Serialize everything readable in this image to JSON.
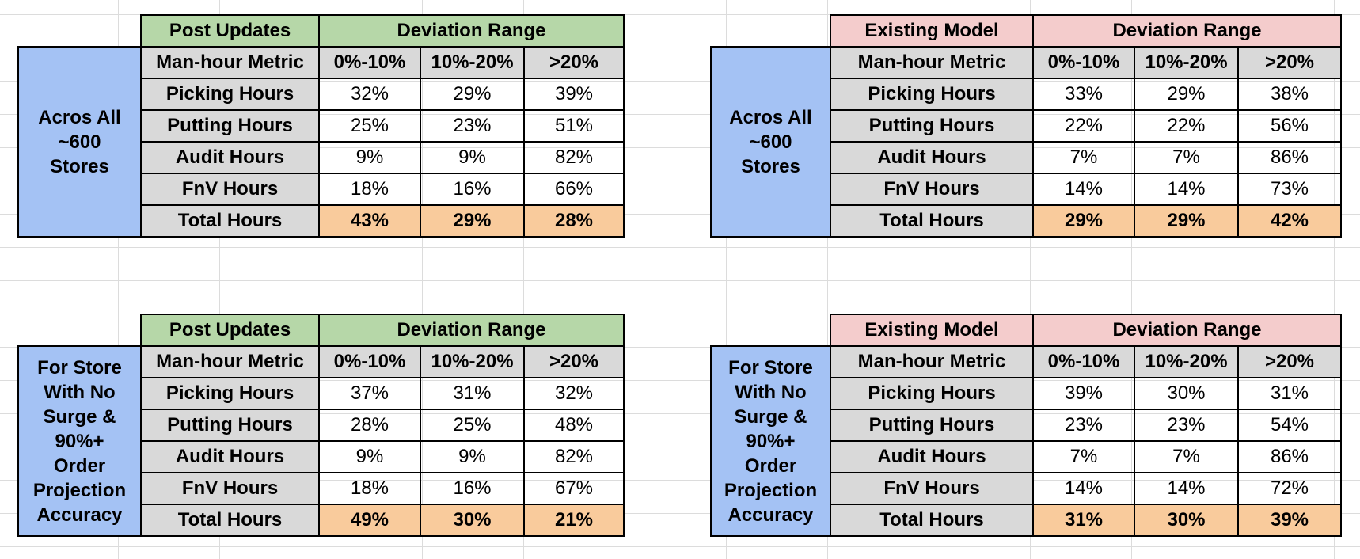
{
  "tables": [
    {
      "corner_label": "Post Updates",
      "range_label": "Deviation Range",
      "side_lines": [
        "Acros All",
        "~600",
        "Stores"
      ],
      "column_headers": [
        "Man-hour Metric",
        "0%-10%",
        "10%-20%",
        ">20%"
      ],
      "rows": [
        {
          "metric": "Picking Hours",
          "values": [
            "32%",
            "29%",
            "39%"
          ]
        },
        {
          "metric": "Putting Hours",
          "values": [
            "25%",
            "23%",
            "51%"
          ]
        },
        {
          "metric": "Audit Hours",
          "values": [
            "9%",
            "9%",
            "82%"
          ]
        },
        {
          "metric": "FnV Hours",
          "values": [
            "18%",
            "16%",
            "66%"
          ]
        },
        {
          "metric": "Total Hours",
          "values": [
            "43%",
            "29%",
            "28%"
          ]
        }
      ]
    },
    {
      "corner_label": "Existing Model",
      "range_label": "Deviation Range",
      "side_lines": [
        "Acros All",
        "~600",
        "Stores"
      ],
      "column_headers": [
        "Man-hour Metric",
        "0%-10%",
        "10%-20%",
        ">20%"
      ],
      "rows": [
        {
          "metric": "Picking Hours",
          "values": [
            "33%",
            "29%",
            "38%"
          ]
        },
        {
          "metric": "Putting Hours",
          "values": [
            "22%",
            "22%",
            "56%"
          ]
        },
        {
          "metric": "Audit Hours",
          "values": [
            "7%",
            "7%",
            "86%"
          ]
        },
        {
          "metric": "FnV Hours",
          "values": [
            "14%",
            "14%",
            "73%"
          ]
        },
        {
          "metric": "Total Hours",
          "values": [
            "29%",
            "29%",
            "42%"
          ]
        }
      ]
    },
    {
      "corner_label": "Post Updates",
      "range_label": "Deviation Range",
      "side_lines": [
        "For Store",
        "With No",
        "Surge &",
        "90%+",
        "Order",
        "Projection",
        "Accuracy"
      ],
      "column_headers": [
        "Man-hour Metric",
        "0%-10%",
        "10%-20%",
        ">20%"
      ],
      "rows": [
        {
          "metric": "Picking Hours",
          "values": [
            "37%",
            "31%",
            "32%"
          ]
        },
        {
          "metric": "Putting Hours",
          "values": [
            "28%",
            "25%",
            "48%"
          ]
        },
        {
          "metric": "Audit Hours",
          "values": [
            "9%",
            "9%",
            "82%"
          ]
        },
        {
          "metric": "FnV Hours",
          "values": [
            "18%",
            "16%",
            "67%"
          ]
        },
        {
          "metric": "Total Hours",
          "values": [
            "49%",
            "30%",
            "21%"
          ]
        }
      ]
    },
    {
      "corner_label": "Existing Model",
      "range_label": "Deviation Range",
      "side_lines": [
        "For Store",
        "With No",
        "Surge &",
        "90%+",
        "Order",
        "Projection",
        "Accuracy"
      ],
      "column_headers": [
        "Man-hour Metric",
        "0%-10%",
        "10%-20%",
        ">20%"
      ],
      "rows": [
        {
          "metric": "Picking Hours",
          "values": [
            "39%",
            "30%",
            "31%"
          ]
        },
        {
          "metric": "Putting Hours",
          "values": [
            "23%",
            "23%",
            "54%"
          ]
        },
        {
          "metric": "Audit Hours",
          "values": [
            "7%",
            "7%",
            "86%"
          ]
        },
        {
          "metric": "FnV Hours",
          "values": [
            "14%",
            "14%",
            "72%"
          ]
        },
        {
          "metric": "Total Hours",
          "values": [
            "31%",
            "30%",
            "39%"
          ]
        }
      ]
    }
  ],
  "colors": {
    "post_updates_header": "#b6d7a8",
    "existing_model_header": "#f4cccc",
    "side_label": "#a4c2f4",
    "metric_column": "#d9d9d9",
    "total_row": "#f9cb9c"
  }
}
